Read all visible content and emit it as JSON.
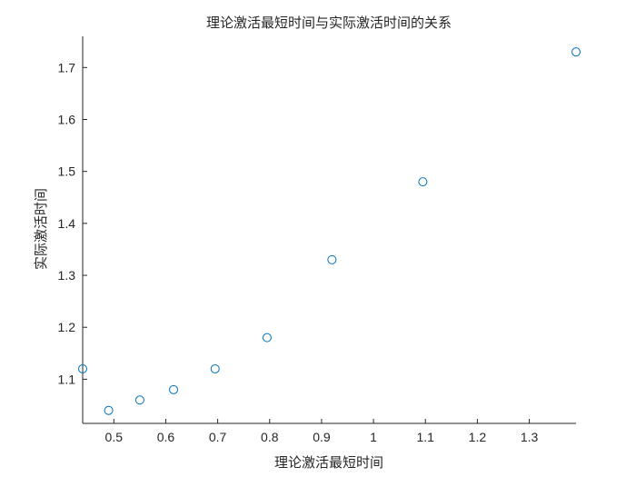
{
  "chart_data": {
    "type": "scatter",
    "title": "理论激活最短时间与实际激活时间的关系",
    "xlabel": "理论激活最短时间",
    "ylabel": "实际激活时间",
    "xlim": [
      0.44,
      1.39
    ],
    "ylim": [
      1.015,
      1.76
    ],
    "x_ticks": [
      "0.5",
      "0.6",
      "0.7",
      "0.8",
      "0.9",
      "1",
      "1.1",
      "1.2",
      "1.3"
    ],
    "y_ticks": [
      "1.1",
      "1.2",
      "1.3",
      "1.4",
      "1.5",
      "1.6",
      "1.7"
    ],
    "grid": false,
    "marker_color": "#0072BD",
    "points": [
      {
        "x": 0.44,
        "y": 1.12
      },
      {
        "x": 0.49,
        "y": 1.04
      },
      {
        "x": 0.55,
        "y": 1.06
      },
      {
        "x": 0.615,
        "y": 1.08
      },
      {
        "x": 0.695,
        "y": 1.12
      },
      {
        "x": 0.795,
        "y": 1.18
      },
      {
        "x": 0.92,
        "y": 1.33
      },
      {
        "x": 1.095,
        "y": 1.48
      },
      {
        "x": 1.39,
        "y": 1.73
      }
    ]
  }
}
